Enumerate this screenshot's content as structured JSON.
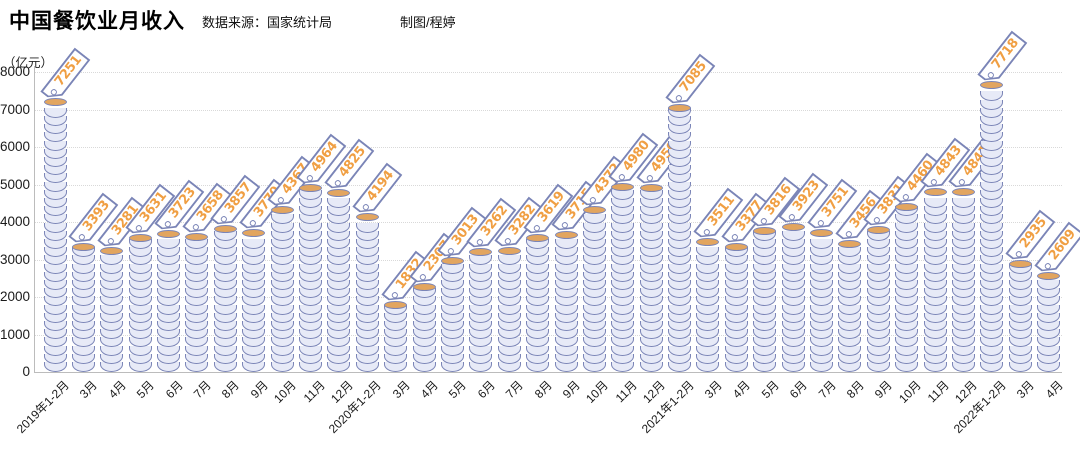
{
  "header": {
    "title": "中国餐饮业月收入",
    "source_label": "数据来源：",
    "source_value": "国家统计局",
    "credit": "制图/程婷"
  },
  "chart_data": {
    "type": "bar",
    "style": "coin-stack pictogram with price-tag value labels",
    "title": "中国餐饮业月收入",
    "ylabel": "（亿元）",
    "ylim": [
      0,
      8000
    ],
    "yticks": [
      0,
      1000,
      2000,
      3000,
      4000,
      5000,
      6000,
      7000,
      8000
    ],
    "grid": "horizontal dotted",
    "legend": "none",
    "categories": [
      "2019年1-2月",
      "3月",
      "4月",
      "5月",
      "6月",
      "7月",
      "8月",
      "9月",
      "10月",
      "11月",
      "12月",
      "2020年1-2月",
      "3月",
      "4月",
      "5月",
      "6月",
      "7月",
      "8月",
      "9月",
      "10月",
      "11月",
      "12月",
      "2021年1-2月",
      "3月",
      "4月",
      "5月",
      "6月",
      "7月",
      "8月",
      "9月",
      "10月",
      "11月",
      "12月",
      "2022年1-2月",
      "3月",
      "4月"
    ],
    "values": [
      7251,
      3393,
      3281,
      3631,
      3723,
      3658,
      3857,
      3770,
      4367,
      4964,
      4825,
      4194,
      1832,
      2307,
      3013,
      3262,
      3282,
      3619,
      3715,
      4372,
      4980,
      4950,
      7085,
      3511,
      3377,
      3816,
      3923,
      3751,
      3456,
      3831,
      4460,
      4843,
      4841,
      7718,
      2935,
      2609
    ]
  },
  "colors": {
    "title": "#000000",
    "coin_fill": "#e7eaf7",
    "coin_border": "#7b85b7",
    "coin_top": "#e2a55f",
    "tag_fill": "#ffffff",
    "tag_text": "#f09f43",
    "axis_text": "#1a1a1a",
    "grid": "#d9d9d9",
    "axis_line": "#bcbcbc"
  }
}
